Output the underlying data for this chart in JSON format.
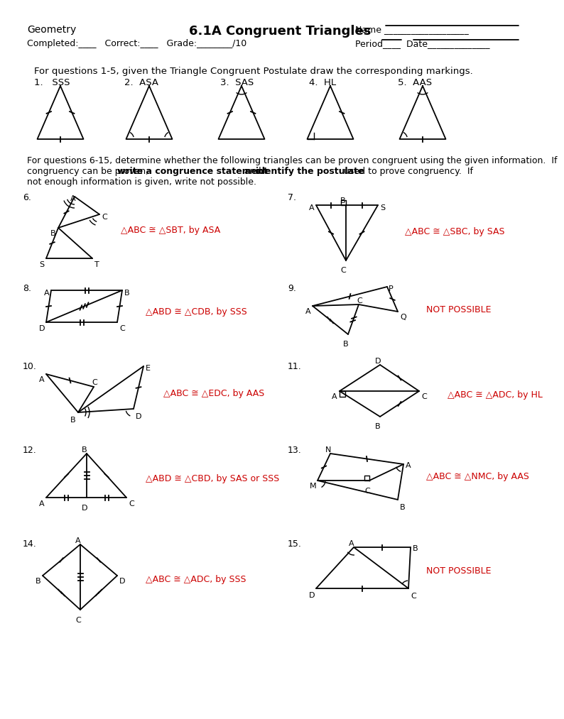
{
  "title": "6.1A Congruent Triangles",
  "header_left": "Geometry",
  "header_right_name": "Name ___________________",
  "header_right_period": "Period____  Date______________",
  "completed_line": "Completed:____   Correct:____   Grade:________/10",
  "q1_5_text": "For questions 1-5, given the Triangle Congruent Postulate draw the corresponding markings.",
  "q1_5_labels": [
    "1.   SSS",
    "2.  ASA",
    "3.  SAS",
    "4.  HL",
    "5.  AAS"
  ],
  "q6_15_text1": "For questions 6-15, determine whether the following triangles can be proven congruent using the given information.  If",
  "q6_15_text2a": "congruency can be proven, ",
  "q6_15_text2b": "write a congruence statement",
  "q6_15_text2c": " and ",
  "q6_15_text2d": "identify the postulate",
  "q6_15_text2e": " used to prove congruency.  If",
  "q6_15_text3": "not enough information is given, write not possible.",
  "answers": {
    "6": "△ABC ≅ △SBT, by ASA",
    "7": "△ABC ≅ △SBC, by SAS",
    "8": "△ABD ≅ △CDB, by SSS",
    "9": "NOT POSSIBLE",
    "10": "△ABC ≅ △EDC, by AAS",
    "11": "△ABC ≅ △ADC, by HL",
    "12": "△ABD ≅ △CBD, by SAS or SSS",
    "13": "△ABC ≅ △NMC, by AAS",
    "14": "△ABC ≅ △ADC, by SSS",
    "15": "NOT POSSIBLE"
  },
  "red": "#CC0000",
  "black": "#000000",
  "bg": "#FFFFFF"
}
